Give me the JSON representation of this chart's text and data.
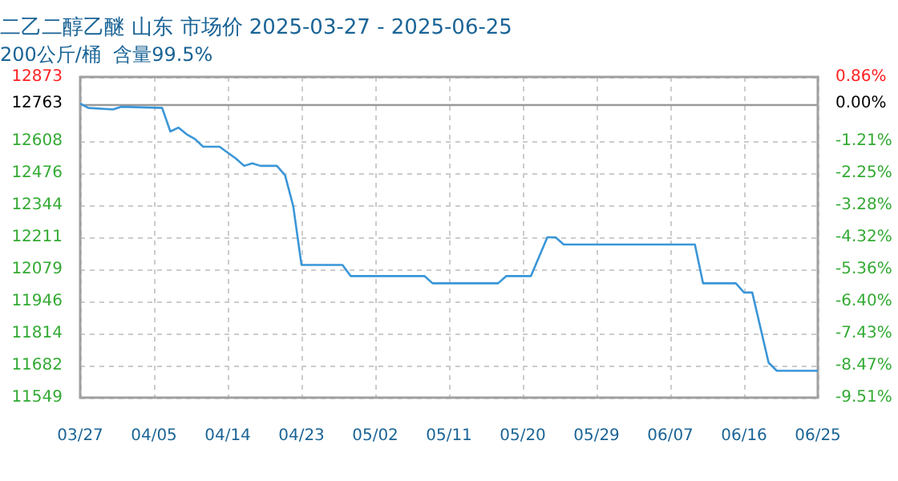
{
  "chart_data": {
    "type": "line",
    "title": "二乙二醇乙醚 山东 市场价 2025-03-27 - 2025-06-25",
    "subtitle": "200公斤/桶  含量99.5%",
    "x": [
      "2025-03-27",
      "2025-03-28",
      "2025-03-31",
      "2025-04-01",
      "2025-04-06",
      "2025-04-07",
      "2025-04-08",
      "2025-04-09",
      "2025-04-10",
      "2025-04-11",
      "2025-04-13",
      "2025-04-15",
      "2025-04-16",
      "2025-04-17",
      "2025-04-18",
      "2025-04-20",
      "2025-04-21",
      "2025-04-22",
      "2025-04-23",
      "2025-04-28",
      "2025-04-29",
      "2025-05-08",
      "2025-05-09",
      "2025-05-17",
      "2025-05-18",
      "2025-05-21",
      "2025-05-23",
      "2025-05-24",
      "2025-05-25",
      "2025-06-10",
      "2025-06-11",
      "2025-06-15",
      "2025-06-16",
      "2025-06-17",
      "2025-06-19",
      "2025-06-20",
      "2025-06-25"
    ],
    "series": [
      {
        "color": "#3a96d8",
        "values": [
          12763,
          12745,
          12739,
          12750,
          12745,
          12648,
          12664,
          12636,
          12617,
          12585,
          12585,
          12536,
          12506,
          12516,
          12506,
          12506,
          12467,
          12339,
          12097,
          12097,
          12051,
          12051,
          12021,
          12021,
          12051,
          12051,
          12211,
          12211,
          12181,
          12181,
          12021,
          12021,
          11983,
          11983,
          11693,
          11660,
          11660
        ]
      }
    ],
    "xlim": [
      "2025-03-27",
      "2025-06-25"
    ],
    "xticks": [
      {
        "value": "2025-03-27",
        "label": "03/27"
      },
      {
        "value": "2025-04-05",
        "label": "04/05"
      },
      {
        "value": "2025-04-14",
        "label": "04/14"
      },
      {
        "value": "2025-04-23",
        "label": "04/23"
      },
      {
        "value": "2025-05-02",
        "label": "05/02"
      },
      {
        "value": "2025-05-11",
        "label": "05/11"
      },
      {
        "value": "2025-05-20",
        "label": "05/20"
      },
      {
        "value": "2025-05-29",
        "label": "05/29"
      },
      {
        "value": "2025-06-07",
        "label": "06/07"
      },
      {
        "value": "2025-06-16",
        "label": "06/16"
      },
      {
        "value": "2025-06-25",
        "label": "06/25"
      }
    ],
    "ylim": [
      11549,
      12873
    ],
    "yticks": [
      11549,
      11682,
      11814,
      11946,
      12079,
      12211,
      12344,
      12476,
      12608,
      12763,
      12873
    ],
    "y2lim": [
      -9.51,
      0.86
    ],
    "y2ticks": [
      {
        "value": -9.51,
        "label": "-9.51%"
      },
      {
        "value": -8.47,
        "label": "-8.47%"
      },
      {
        "value": -7.43,
        "label": "-7.43%"
      },
      {
        "value": -6.4,
        "label": "-6.40%"
      },
      {
        "value": -5.36,
        "label": "-5.36%"
      },
      {
        "value": -4.32,
        "label": "-4.32%"
      },
      {
        "value": -3.28,
        "label": "-3.28%"
      },
      {
        "value": -2.25,
        "label": "-2.25%"
      },
      {
        "value": -1.21,
        "label": "-1.21%"
      },
      {
        "value": 0,
        "label": "0.00%"
      },
      {
        "value": 0.86,
        "label": "0.86%"
      }
    ],
    "ref_lines": [
      {
        "axis": "y",
        "value": 12763,
        "color": "#999999"
      }
    ],
    "grid": true,
    "marker": "none",
    "line_style": "solid"
  }
}
